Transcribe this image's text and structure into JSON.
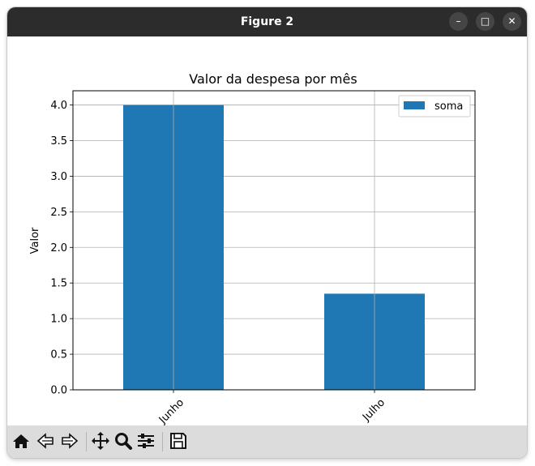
{
  "window": {
    "title": "Figure 2",
    "controls": {
      "minimize": "–",
      "maximize": "□",
      "close": "✕"
    }
  },
  "toolbar": {
    "buttons": [
      "home-icon",
      "back-icon",
      "forward-icon",
      "pan-icon",
      "zoom-icon",
      "configure-subplots-icon",
      "save-icon"
    ]
  },
  "colors": {
    "bar": "#1f77b4",
    "grid": "#b0b0b0",
    "titlebar": "#2c2c2c",
    "toolbar": "#dcdcdc"
  },
  "chart_data": {
    "type": "bar",
    "title": "Valor da despesa por mês",
    "xlabel": "",
    "ylabel": "Valor",
    "categories": [
      "Junho",
      "Julho"
    ],
    "series": [
      {
        "name": "soma",
        "values": [
          4.0,
          1.35
        ]
      }
    ],
    "ylim": [
      0,
      4.2
    ],
    "yticks": [
      0.0,
      0.5,
      1.0,
      1.5,
      2.0,
      2.5,
      3.0,
      3.5,
      4.0
    ],
    "ytick_labels": [
      "0.0",
      "0.5",
      "1.0",
      "1.5",
      "2.0",
      "2.5",
      "3.0",
      "3.5",
      "4.0"
    ],
    "grid": true,
    "legend_position": "upper right"
  }
}
